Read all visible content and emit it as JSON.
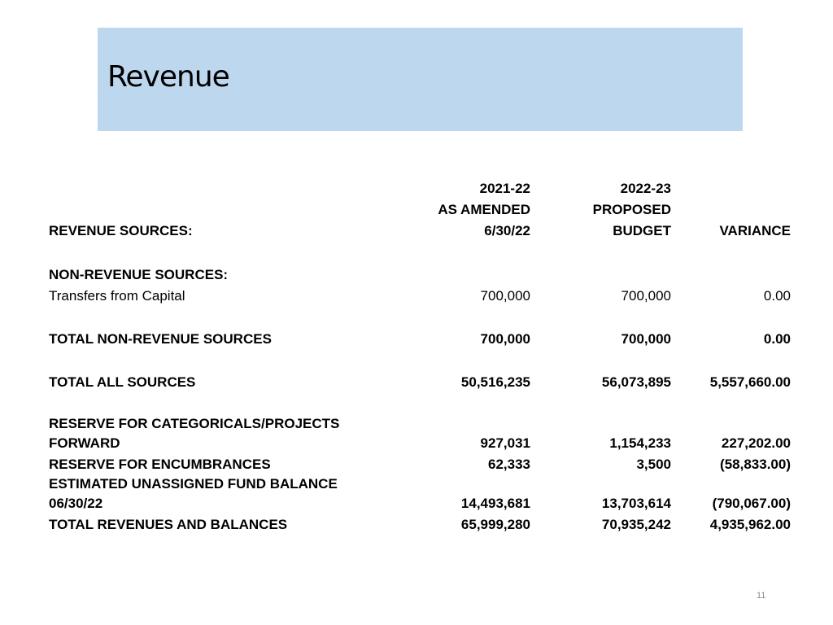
{
  "slide": {
    "title": "Revenue",
    "page_number": "11"
  },
  "table": {
    "header": {
      "label": "REVENUE SOURCES:",
      "col_a": [
        "2021-22",
        "AS AMENDED",
        "6/30/22"
      ],
      "col_b": [
        "2022-23",
        "PROPOSED",
        "BUDGET"
      ],
      "col_v": "VARIANCE"
    },
    "rows": [
      {
        "label": "NON-REVENUE SOURCES:",
        "a": "",
        "b": "",
        "v": ""
      },
      {
        "label": "Transfers from Capital",
        "a": "700,000",
        "b": "700,000",
        "v": "0.00"
      },
      {
        "label": "TOTAL NON-REVENUE SOURCES",
        "a": "700,000",
        "b": "700,000",
        "v": "0.00"
      },
      {
        "label": "TOTAL ALL SOURCES",
        "a": "50,516,235",
        "b": "56,073,895",
        "v": "5,557,660.00"
      },
      {
        "label": "RESERVE FOR CATEGORICALS/PROJECTS",
        "a": "",
        "b": "",
        "v": ""
      },
      {
        "label": "FORWARD",
        "a": "927,031",
        "b": "1,154,233",
        "v": "227,202.00"
      },
      {
        "label": "RESERVE FOR ENCUMBRANCES",
        "a": "62,333",
        "b": "3,500",
        "v": "(58,833.00)"
      },
      {
        "label": "ESTIMATED UNASSIGNED FUND BALANCE",
        "a": "",
        "b": "",
        "v": ""
      },
      {
        "label": "06/30/22",
        "a": "14,493,681",
        "b": "13,703,614",
        "v": "(790,067.00)"
      },
      {
        "label": "TOTAL REVENUES AND BALANCES",
        "a": "65,999,280",
        "b": "70,935,242",
        "v": "4,935,962.00"
      }
    ]
  }
}
